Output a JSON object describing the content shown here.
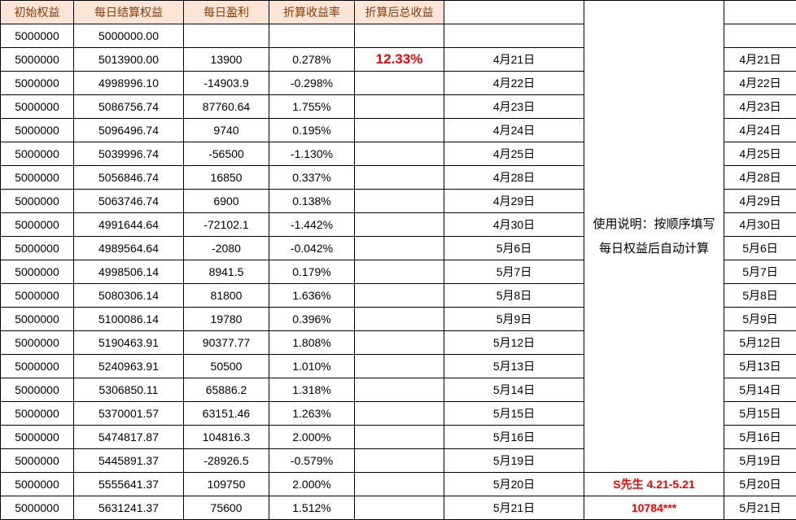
{
  "table": {
    "headers": [
      "初始权益",
      "每日结算权益",
      "每日盈利",
      "折算收益率",
      "折算后总收益"
    ],
    "rows": [
      {
        "initial": "5000000",
        "settled": "5000000.00",
        "profit": "",
        "rate": "",
        "total": "",
        "date": "",
        "date2": ""
      },
      {
        "initial": "5000000",
        "settled": "5013900.00",
        "profit": "13900",
        "rate": "0.278%",
        "total": "12.33%",
        "date": "4月21日",
        "date2": "4月21日"
      },
      {
        "initial": "5000000",
        "settled": "4998996.10",
        "profit": "-14903.9",
        "rate": "-0.298%",
        "total": "",
        "date": "4月22日",
        "date2": "4月22日"
      },
      {
        "initial": "5000000",
        "settled": "5086756.74",
        "profit": "87760.64",
        "rate": "1.755%",
        "total": "",
        "date": "4月23日",
        "date2": "4月23日"
      },
      {
        "initial": "5000000",
        "settled": "5096496.74",
        "profit": "9740",
        "rate": "0.195%",
        "total": "",
        "date": "4月24日",
        "date2": "4月24日"
      },
      {
        "initial": "5000000",
        "settled": "5039996.74",
        "profit": "-56500",
        "rate": "-1.130%",
        "total": "",
        "date": "4月25日",
        "date2": "4月25日"
      },
      {
        "initial": "5000000",
        "settled": "5056846.74",
        "profit": "16850",
        "rate": "0.337%",
        "total": "",
        "date": "4月28日",
        "date2": "4月28日"
      },
      {
        "initial": "5000000",
        "settled": "5063746.74",
        "profit": "6900",
        "rate": "0.138%",
        "total": "",
        "date": "4月29日",
        "date2": "4月29日"
      },
      {
        "initial": "5000000",
        "settled": "4991644.64",
        "profit": "-72102.1",
        "rate": "-1.442%",
        "total": "",
        "date": "4月30日",
        "date2": "4月30日"
      },
      {
        "initial": "5000000",
        "settled": "4989564.64",
        "profit": "-2080",
        "rate": "-0.042%",
        "total": "",
        "date": "5月6日",
        "date2": "5月6日"
      },
      {
        "initial": "5000000",
        "settled": "4998506.14",
        "profit": "8941.5",
        "rate": "0.179%",
        "total": "",
        "date": "5月7日",
        "date2": "5月7日"
      },
      {
        "initial": "5000000",
        "settled": "5080306.14",
        "profit": "81800",
        "rate": "1.636%",
        "total": "",
        "date": "5月8日",
        "date2": "5月8日"
      },
      {
        "initial": "5000000",
        "settled": "5100086.14",
        "profit": "19780",
        "rate": "0.396%",
        "total": "",
        "date": "5月9日",
        "date2": "5月9日"
      },
      {
        "initial": "5000000",
        "settled": "5190463.91",
        "profit": "90377.77",
        "rate": "1.808%",
        "total": "",
        "date": "5月12日",
        "date2": "5月12日"
      },
      {
        "initial": "5000000",
        "settled": "5240963.91",
        "profit": "50500",
        "rate": "1.010%",
        "total": "",
        "date": "5月13日",
        "date2": "5月13日"
      },
      {
        "initial": "5000000",
        "settled": "5306850.11",
        "profit": "65886.2",
        "rate": "1.318%",
        "total": "",
        "date": "5月14日",
        "date2": "5月14日"
      },
      {
        "initial": "5000000",
        "settled": "5370001.57",
        "profit": "63151.46",
        "rate": "1.263%",
        "total": "",
        "date": "5月15日",
        "date2": "5月15日"
      },
      {
        "initial": "5000000",
        "settled": "5474817.87",
        "profit": "104816.3",
        "rate": "2.000%",
        "total": "",
        "date": "5月16日",
        "date2": "5月16日"
      },
      {
        "initial": "5000000",
        "settled": "5445891.37",
        "profit": "-28926.5",
        "rate": "-0.579%",
        "total": "",
        "date": "5月19日",
        "date2": "5月19日"
      },
      {
        "initial": "5000000",
        "settled": "5555641.37",
        "profit": "109750",
        "rate": "2.000%",
        "total": "",
        "date": "5月20日",
        "note": "S先生 4.21-5.21",
        "date2": "5月20日"
      },
      {
        "initial": "5000000",
        "settled": "5631241.37",
        "profit": "75600",
        "rate": "1.512%",
        "total": "",
        "date": "5月21日",
        "note": "10784***",
        "date2": "5月21日"
      }
    ]
  },
  "note": {
    "line1": "使用说明：按顺序填写",
    "line2": "每日权益后自动计算"
  },
  "colors": {
    "header_bg": "#FCE4D6",
    "header_text": "#8E3A00",
    "highlight_red": "#FF0000",
    "border": "#000000"
  }
}
